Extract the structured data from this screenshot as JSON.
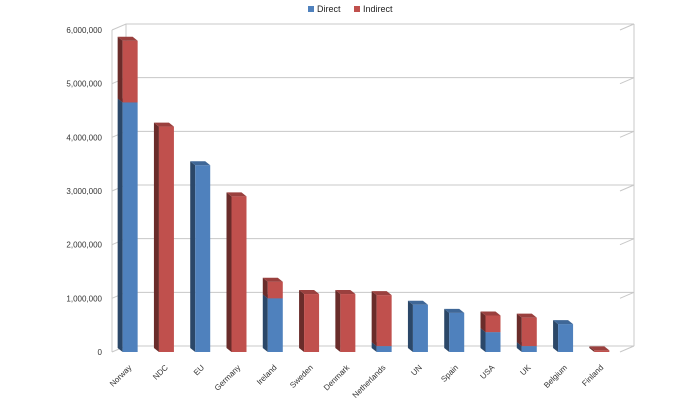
{
  "chart_data": {
    "type": "bar",
    "stacked": true,
    "three_d": true,
    "categories": [
      "Norway",
      "NDC",
      "EU",
      "Germany",
      "Ireland",
      "Sweden",
      "Denmark",
      "Netherlands",
      "UN",
      "Spain",
      "USA",
      "UK",
      "Belgium",
      "Finland"
    ],
    "series": [
      {
        "name": "Direct",
        "color": "#4f81bd",
        "values": [
          4650000,
          0,
          3480000,
          0,
          1000000,
          0,
          0,
          110000,
          880000,
          730000,
          370000,
          110000,
          520000,
          0
        ]
      },
      {
        "name": "Indirect",
        "color": "#c0504d",
        "values": [
          1150000,
          4200000,
          0,
          2900000,
          310000,
          1080000,
          1080000,
          950000,
          0,
          0,
          310000,
          530000,
          0,
          30000
        ]
      }
    ],
    "yticks": [
      "0",
      "1,000,000",
      "2,000,000",
      "3,000,000",
      "4,000,000",
      "5,000,000",
      "6,000,000"
    ],
    "ylim": [
      0,
      6000000
    ],
    "grid": true,
    "legend_position": "top-center"
  }
}
